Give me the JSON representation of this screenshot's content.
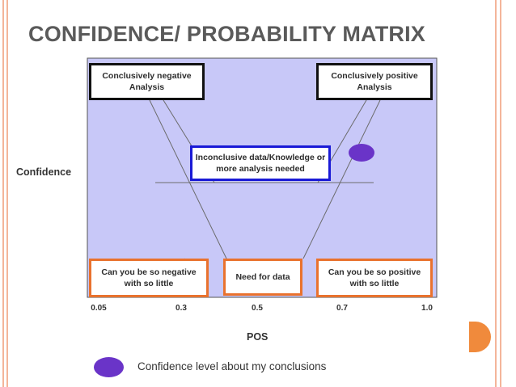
{
  "slide": {
    "title": "CONFIDENCE/ PROBABILITY MATRIX"
  },
  "diagram": {
    "y_axis_label": "Confidence",
    "x_axis_label": "POS",
    "x_ticks": [
      "0.05",
      "0.3",
      "0.5",
      "0.7",
      "1.0"
    ],
    "boxes": {
      "top_left": "Conclusively negative\nAnalysis",
      "top_right": "Conclusively positive\nAnalysis",
      "middle": "Inconclusive data/Knowledge or\nmore analysis needed",
      "bottom_left": "Can you be so negative\nwith so little",
      "bottom_center": "Need for data",
      "bottom_right": "Can you be so positive\nwith so little"
    },
    "legend_label": "Confidence level about my conclusions"
  },
  "colors": {
    "plot_background": "#c8c8f8",
    "marker": "#6a34c8",
    "title_text": "#5a5a5a",
    "box_black": "#111111",
    "box_blue": "#1a1ad6",
    "box_orange": "#e9722e",
    "accent": "#f08a3c"
  }
}
